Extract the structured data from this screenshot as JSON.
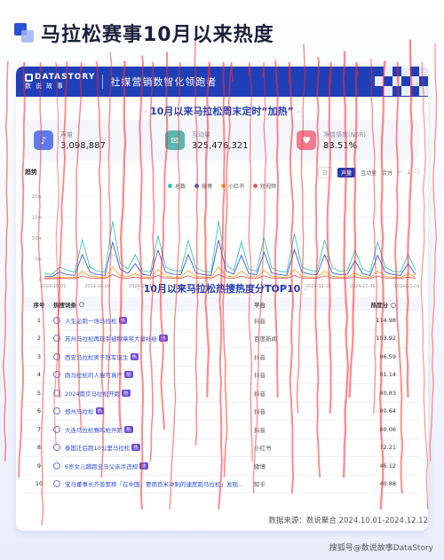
{
  "main_title": "马拉松赛事10月以来热度",
  "header": {
    "brand_top": "DATASTORY",
    "brand_bottom": "数说故事",
    "slogan": "社媒营销数智化领跑者"
  },
  "section1_title": "10月以来马拉松周末定时“加热”",
  "stats": [
    {
      "icon": "volume-icon",
      "label": "声量",
      "value": "3,098,887",
      "color": "#5b7cf0"
    },
    {
      "icon": "chat-icon",
      "label": "互动量",
      "value": "325,476,321",
      "color": "#58b7b0"
    },
    {
      "icon": "heart-icon",
      "label": "净情感度(NSR)",
      "value": "83.51%",
      "color": "#f07b8f"
    }
  ],
  "trend": {
    "title": "趋势",
    "tools": {
      "day": "日",
      "volume": "声量",
      "interaction": "互动量",
      "merge": "合并"
    }
  },
  "chart_data": {
    "type": "line",
    "x_ticks": [
      "2024-10-01",
      "2024-10-09",
      "2024-10-17",
      "2024-10-25",
      "2024-11-02",
      "2024-11-10",
      "2024-11-18",
      "2024-11-26",
      "2024-12-04"
    ],
    "y_ticks": [
      "0",
      "5w",
      "10w",
      "15w",
      "20w"
    ],
    "ylim": [
      0,
      200000
    ],
    "series": [
      {
        "name": "总数",
        "color": "#3ec5b8",
        "values": [
          15000,
          12000,
          30000,
          22000,
          18000,
          95000,
          30000,
          20000,
          18000,
          140000,
          40000,
          25000,
          60000,
          20000,
          18000,
          105000,
          30000,
          22000,
          20000,
          95000,
          28000,
          20000,
          18000,
          140000,
          35000,
          22000,
          90000,
          25000,
          20000,
          100000,
          28000,
          20000,
          18000,
          110000,
          30000,
          22000,
          20000,
          95000,
          28000,
          20000,
          22000,
          70000,
          25000,
          18000,
          90000,
          30000,
          20000,
          18000,
          60000,
          22000
        ]
      },
      {
        "name": "微博",
        "color": "#3b5bdb",
        "values": [
          8000,
          7000,
          18000,
          12000,
          10000,
          60000,
          18000,
          12000,
          10000,
          90000,
          25000,
          15000,
          38000,
          12000,
          10000,
          70000,
          18000,
          13000,
          12000,
          60000,
          16000,
          12000,
          10000,
          95000,
          20000,
          13000,
          58000,
          14000,
          12000,
          65000,
          16000,
          12000,
          10000,
          72000,
          18000,
          13000,
          12000,
          60000,
          16000,
          12000,
          13000,
          45000,
          14000,
          10000,
          58000,
          18000,
          12000,
          10000,
          38000,
          12000
        ]
      },
      {
        "name": "小红书",
        "color": "#f5a623",
        "values": [
          4000,
          4000,
          6000,
          5000,
          5000,
          20000,
          8000,
          6000,
          5000,
          30000,
          10000,
          7000,
          14000,
          6000,
          5000,
          24000,
          8000,
          6000,
          6000,
          22000,
          8000,
          6000,
          5000,
          30000,
          9000,
          6000,
          20000,
          7000,
          6000,
          22000,
          8000,
          6000,
          5000,
          24000,
          8000,
          6000,
          6000,
          20000,
          8000,
          6000,
          6000,
          16000,
          7000,
          5000,
          20000,
          8000,
          6000,
          5000,
          14000,
          6000
        ]
      },
      {
        "name": "短视频",
        "color": "#e8596b",
        "values": [
          2000,
          2000,
          3000,
          2500,
          2500,
          9000,
          3500,
          3000,
          2500,
          12000,
          4500,
          3000,
          6000,
          3000,
          2500,
          10000,
          3500,
          3000,
          3000,
          9000,
          3500,
          3000,
          2500,
          12000,
          4000,
          3000,
          8000,
          3000,
          2500,
          9000,
          3500,
          3000,
          2500,
          10000,
          3500,
          3000,
          3000,
          9000,
          3500,
          3000,
          3000,
          7000,
          3000,
          2500,
          8000,
          3500,
          3000,
          2500,
          6000,
          3000
        ]
      }
    ]
  },
  "section2_title": "10月以来马拉松热搜热度分TOP10",
  "table": {
    "headers": {
      "idx": "序号",
      "kw": "热搜词条",
      "plat": "平台",
      "score": "热度分"
    },
    "rows": [
      {
        "idx": "1",
        "kw": "人生必跑一场马拉松",
        "hot": "热",
        "plat": "抖音",
        "score": "114.98"
      },
      {
        "idx": "2",
        "kw": "苏州马拉松再现手被糊章奖大量补给",
        "hot": "热",
        "plat": "百度新闻",
        "score": "103.92"
      },
      {
        "idx": "3",
        "kw": "西安马拉松男子冠军诞生",
        "hot": "热",
        "plat": "抖音",
        "score": "96.59"
      },
      {
        "idx": "4",
        "kw": "跑马拉松的人瘦可真严",
        "hot": "热",
        "plat": "抖音",
        "score": "81.14"
      },
      {
        "idx": "5",
        "kw": "2024南京马拉松开跑",
        "hot": "热",
        "plat": "抖音",
        "score": "80.83"
      },
      {
        "idx": "6",
        "kw": "郑州马拉松",
        "hot": "热",
        "plat": "抖音",
        "score": "80.64"
      },
      {
        "idx": "7",
        "kw": "大连马拉松赛鸣枪开跑",
        "hot": "热",
        "plat": "抖音",
        "score": "80.06"
      },
      {
        "idx": "8",
        "kw": "泰国正后跑10公里马拉松",
        "hot": "热",
        "plat": "小红书",
        "score": "72.21"
      },
      {
        "idx": "9",
        "kw": "6岁女儿蹭跑全马父亲涉违规",
        "hot": "热",
        "plat": "微博",
        "score": "46.12"
      },
      {
        "idx": "10",
        "kw": "宝马董事长齐普策称「在中国，要用百米冲刺的速度跑马拉松」发现...",
        "hot": "",
        "plat": "知乎",
        "score": "40.88"
      }
    ]
  },
  "source": "数据来源：数说聚合 2024.10.01-2024.12.12",
  "footer": "搜狐号@数说故事DataStory"
}
